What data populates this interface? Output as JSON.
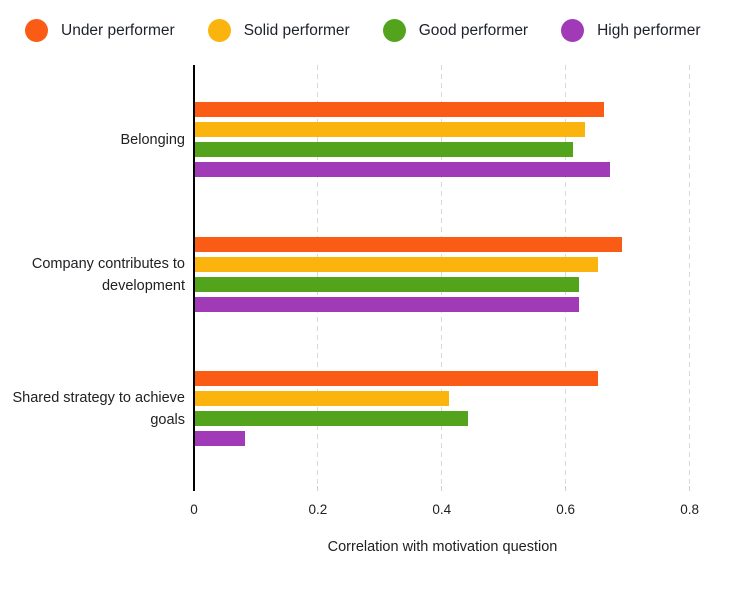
{
  "legend": {
    "items": [
      {
        "label": "Under performer",
        "color": "#FA5B15"
      },
      {
        "label": "Solid performer",
        "color": "#FBB30E"
      },
      {
        "label": "Good performer",
        "color": "#53A31D"
      },
      {
        "label": "High performer",
        "color": "#A13AB7"
      }
    ]
  },
  "chart_data": {
    "type": "bar",
    "orientation": "horizontal",
    "title": "",
    "xlabel": "Correlation with motivation question",
    "ylabel": "",
    "categories": [
      "Belonging",
      "Company contributes to development",
      "Shared strategy to achieve goals"
    ],
    "series": [
      {
        "name": "Under performer",
        "color": "#FA5B15",
        "values": [
          0.66,
          0.69,
          0.65
        ]
      },
      {
        "name": "Solid performer",
        "color": "#FBB30E",
        "values": [
          0.63,
          0.65,
          0.41
        ]
      },
      {
        "name": "Good performer",
        "color": "#53A31D",
        "values": [
          0.61,
          0.62,
          0.44
        ]
      },
      {
        "name": "High performer",
        "color": "#A13AB7",
        "values": [
          0.67,
          0.62,
          0.08
        ]
      }
    ],
    "xlim": [
      0,
      0.8
    ],
    "x_ticks": [
      0,
      0.2,
      0.4,
      0.6,
      0.8
    ],
    "x_tick_labels": [
      "0",
      "0.2",
      "0.4",
      "0.6",
      "0.8"
    ],
    "grid": "dashed-vertical",
    "legend_position": "top"
  },
  "colors": {
    "background": "#FFFFFF",
    "axis": "#000000",
    "gridline": "#D9D9D9",
    "text": "#202124"
  }
}
